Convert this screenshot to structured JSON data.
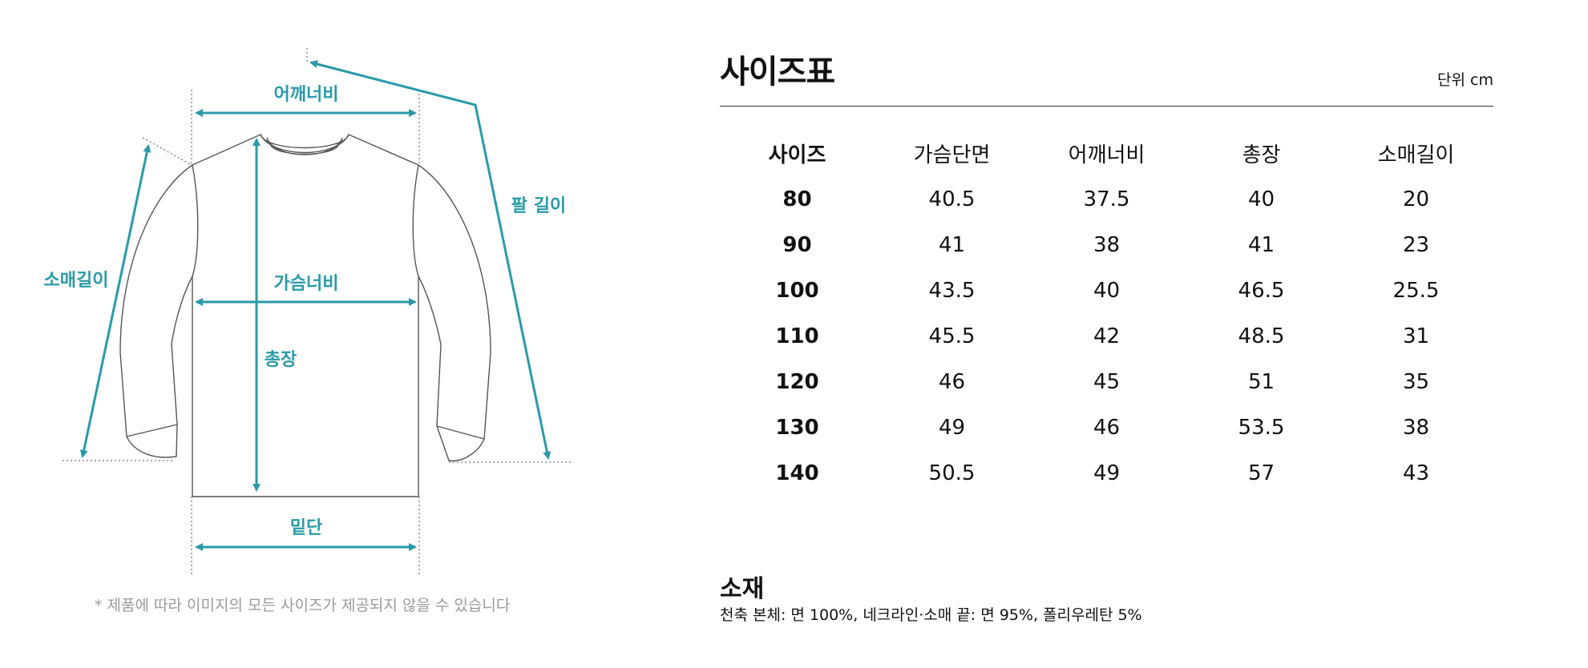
{
  "diagram": {
    "labels": {
      "shoulder": "어깨너비",
      "arm": "팔 길이",
      "sleeve": "소매길이",
      "chest": "가슴너비",
      "length": "총장",
      "hem": "밑단"
    },
    "note": "* 제품에 따라 이미지의 모든 사이즈가 제공되지 않을 수 있습니다",
    "accent_color": "#2a9aa8"
  },
  "size_chart": {
    "title": "사이즈표",
    "unit": "단위 cm",
    "headers": [
      "사이즈",
      "가슴단면",
      "어깨너비",
      "총장",
      "소매길이"
    ],
    "rows": [
      [
        "80",
        "40.5",
        "37.5",
        "40",
        "20"
      ],
      [
        "90",
        "41",
        "38",
        "41",
        "23"
      ],
      [
        "100",
        "43.5",
        "40",
        "46.5",
        "25.5"
      ],
      [
        "110",
        "45.5",
        "42",
        "48.5",
        "31"
      ],
      [
        "120",
        "46",
        "45",
        "51",
        "35"
      ],
      [
        "130",
        "49",
        "46",
        "53.5",
        "38"
      ],
      [
        "140",
        "50.5",
        "49",
        "57",
        "43"
      ]
    ]
  },
  "material": {
    "title": "소재",
    "text": "천축 본체: 면 100%, 네크라인·소매 끝: 면 95%, 폴리우레탄 5%"
  }
}
